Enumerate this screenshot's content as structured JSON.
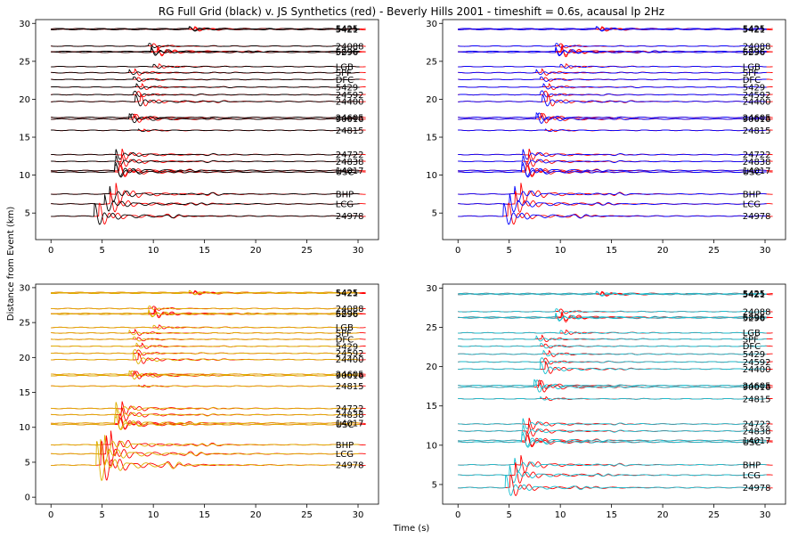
{
  "figure": {
    "title": "RG Full Grid (black) v. JS Synthetics (red) - Beverly Hills 2001 - timeshift = 0.6s, acausal lp 2Hz",
    "xlabel": "Time (s)",
    "ylabel": "Distance from Event (km)"
  },
  "chart_data": [
    {
      "type": "line",
      "panel": "top-left",
      "observed_color": "#000000",
      "synthetic_color": "#ff0000",
      "xlim": [
        -1.5,
        32
      ],
      "ylim": [
        1.5,
        30.5
      ],
      "xticks": [
        0,
        5,
        10,
        15,
        20,
        25,
        30
      ],
      "yticks": [
        5,
        10,
        15,
        20,
        25,
        30
      ],
      "stations": [
        {
          "name": "5425",
          "distance": 29.3,
          "onset": 13.5,
          "amp": 0.25
        },
        {
          "name": "5421",
          "distance": 29.2,
          "onset": 13.5,
          "amp": 0.25
        },
        {
          "name": "24088",
          "distance": 27.0,
          "onset": 9.5,
          "amp": 0.3
        },
        {
          "name": "6896",
          "distance": 26.3,
          "onset": 9.8,
          "amp": 0.6
        },
        {
          "name": "5296",
          "distance": 26.2,
          "onset": 9.8,
          "amp": 0.4
        },
        {
          "name": "LGB",
          "distance": 24.3,
          "onset": 10.0,
          "amp": 0.3
        },
        {
          "name": "SPF",
          "distance": 23.5,
          "onset": 7.6,
          "amp": 0.35
        },
        {
          "name": "DFC",
          "distance": 22.6,
          "onset": 8.0,
          "amp": 0.3
        },
        {
          "name": "5429",
          "distance": 21.6,
          "onset": 8.3,
          "amp": 0.35
        },
        {
          "name": "24592",
          "distance": 20.6,
          "onset": 8.0,
          "amp": 0.45
        },
        {
          "name": "24400",
          "distance": 19.7,
          "onset": 8.2,
          "amp": 0.8
        },
        {
          "name": "24605",
          "distance": 17.6,
          "onset": 7.8,
          "amp": 0.4
        },
        {
          "name": "90016",
          "distance": 17.4,
          "onset": 7.6,
          "amp": 0.6
        },
        {
          "name": "24815",
          "distance": 15.9,
          "onset": 8.5,
          "amp": 0.15
        },
        {
          "name": "24722",
          "distance": 12.7,
          "onset": 6.3,
          "amp": 0.7
        },
        {
          "name": "24838",
          "distance": 11.8,
          "onset": 6.3,
          "amp": 0.7
        },
        {
          "name": "14017",
          "distance": 10.6,
          "onset": 6.2,
          "amp": 1.0
        },
        {
          "name": "USC",
          "distance": 10.4,
          "onset": 6.2,
          "amp": 0.9
        },
        {
          "name": "BHP",
          "distance": 7.5,
          "onset": 5.7,
          "amp": 1.2
        },
        {
          "name": "LCG",
          "distance": 6.2,
          "onset": 5.2,
          "amp": 1.2
        },
        {
          "name": "24978",
          "distance": 4.6,
          "onset": 4.2,
          "amp": 1.5
        }
      ]
    },
    {
      "type": "line",
      "panel": "top-right",
      "observed_color": "#0000ff",
      "synthetic_color": "#ff0000",
      "xlim": [
        -1.5,
        32
      ],
      "ylim": [
        1.5,
        30.5
      ],
      "xticks": [
        0,
        5,
        10,
        15,
        20,
        25,
        30
      ],
      "yticks": [
        5,
        10,
        15,
        20,
        25,
        30
      ],
      "stations": [
        {
          "name": "5425",
          "distance": 29.3,
          "onset": 13.5,
          "amp": 0.25
        },
        {
          "name": "5421",
          "distance": 29.2,
          "onset": 13.5,
          "amp": 0.25
        },
        {
          "name": "24088",
          "distance": 27.0,
          "onset": 9.5,
          "amp": 0.3
        },
        {
          "name": "6896",
          "distance": 26.3,
          "onset": 9.5,
          "amp": 0.7
        },
        {
          "name": "5296",
          "distance": 26.2,
          "onset": 9.5,
          "amp": 0.5
        },
        {
          "name": "LGB",
          "distance": 24.3,
          "onset": 10.0,
          "amp": 0.3
        },
        {
          "name": "SPF",
          "distance": 23.5,
          "onset": 7.6,
          "amp": 0.35
        },
        {
          "name": "DFC",
          "distance": 22.6,
          "onset": 8.0,
          "amp": 0.3
        },
        {
          "name": "5429",
          "distance": 21.6,
          "onset": 8.3,
          "amp": 0.35
        },
        {
          "name": "24592",
          "distance": 20.6,
          "onset": 8.0,
          "amp": 0.5
        },
        {
          "name": "24400",
          "distance": 19.7,
          "onset": 8.2,
          "amp": 0.8
        },
        {
          "name": "24605",
          "distance": 17.6,
          "onset": 7.8,
          "amp": 0.5
        },
        {
          "name": "90016",
          "distance": 17.4,
          "onset": 7.6,
          "amp": 0.7
        },
        {
          "name": "24815",
          "distance": 15.9,
          "onset": 8.5,
          "amp": 0.15
        },
        {
          "name": "24722",
          "distance": 12.7,
          "onset": 6.3,
          "amp": 0.7
        },
        {
          "name": "24838",
          "distance": 11.8,
          "onset": 6.3,
          "amp": 0.7
        },
        {
          "name": "14017",
          "distance": 10.6,
          "onset": 6.2,
          "amp": 1.0
        },
        {
          "name": "USC",
          "distance": 10.4,
          "onset": 6.2,
          "amp": 0.9
        },
        {
          "name": "BHP",
          "distance": 7.5,
          "onset": 5.5,
          "amp": 1.2
        },
        {
          "name": "LCG",
          "distance": 6.2,
          "onset": 5.0,
          "amp": 1.3
        },
        {
          "name": "24978",
          "distance": 4.6,
          "onset": 4.4,
          "amp": 1.5
        }
      ]
    },
    {
      "type": "line",
      "panel": "bottom-left",
      "observed_color": "#ddb000",
      "synthetic_color": "#ff0000",
      "xlim": [
        -1.5,
        32
      ],
      "ylim": [
        -1,
        30.5
      ],
      "xticks": [
        0,
        5,
        10,
        15,
        20,
        25,
        30
      ],
      "yticks": [
        0,
        5,
        10,
        15,
        20,
        25,
        30
      ],
      "stations": [
        {
          "name": "5425",
          "distance": 29.3,
          "onset": 13.5,
          "amp": 0.25
        },
        {
          "name": "5421",
          "distance": 29.2,
          "onset": 13.5,
          "amp": 0.25
        },
        {
          "name": "24088",
          "distance": 27.0,
          "onset": 9.5,
          "amp": 0.3
        },
        {
          "name": "6896",
          "distance": 26.3,
          "onset": 9.5,
          "amp": 0.6
        },
        {
          "name": "5296",
          "distance": 26.2,
          "onset": 9.5,
          "amp": 0.4
        },
        {
          "name": "LGB",
          "distance": 24.3,
          "onset": 10.0,
          "amp": 0.3
        },
        {
          "name": "SPF",
          "distance": 23.5,
          "onset": 7.6,
          "amp": 0.35
        },
        {
          "name": "DFC",
          "distance": 22.6,
          "onset": 8.0,
          "amp": 0.3
        },
        {
          "name": "5429",
          "distance": 21.6,
          "onset": 8.3,
          "amp": 0.35
        },
        {
          "name": "24592",
          "distance": 20.6,
          "onset": 8.0,
          "amp": 0.5
        },
        {
          "name": "24400",
          "distance": 19.7,
          "onset": 8.0,
          "amp": 0.8
        },
        {
          "name": "24605",
          "distance": 17.6,
          "onset": 7.8,
          "amp": 0.4
        },
        {
          "name": "90016",
          "distance": 17.4,
          "onset": 7.6,
          "amp": 0.6
        },
        {
          "name": "24815",
          "distance": 15.9,
          "onset": 8.5,
          "amp": 0.15
        },
        {
          "name": "24722",
          "distance": 12.7,
          "onset": 6.3,
          "amp": 0.9
        },
        {
          "name": "24838",
          "distance": 11.8,
          "onset": 6.3,
          "amp": 0.9
        },
        {
          "name": "14017",
          "distance": 10.6,
          "onset": 6.2,
          "amp": 1.2
        },
        {
          "name": "USC",
          "distance": 10.4,
          "onset": 6.2,
          "amp": 1.0
        },
        {
          "name": "BHP",
          "distance": 7.5,
          "onset": 5.2,
          "amp": 1.6
        },
        {
          "name": "LCG",
          "distance": 6.2,
          "onset": 4.8,
          "amp": 2.0
        },
        {
          "name": "24978",
          "distance": 4.6,
          "onset": 4.4,
          "amp": 3.0
        }
      ]
    },
    {
      "type": "line",
      "panel": "bottom-right",
      "observed_color": "#17becf",
      "synthetic_color": "#ff0000",
      "xlim": [
        -1.5,
        32
      ],
      "ylim": [
        2.5,
        30.5
      ],
      "xticks": [
        0,
        5,
        10,
        15,
        20,
        25,
        30
      ],
      "yticks": [
        5,
        10,
        15,
        20,
        25,
        30
      ],
      "stations": [
        {
          "name": "5425",
          "distance": 29.3,
          "onset": 13.5,
          "amp": 0.25
        },
        {
          "name": "5421",
          "distance": 29.2,
          "onset": 13.5,
          "amp": 0.25
        },
        {
          "name": "24088",
          "distance": 27.0,
          "onset": 9.5,
          "amp": 0.3
        },
        {
          "name": "6896",
          "distance": 26.3,
          "onset": 9.5,
          "amp": 0.6
        },
        {
          "name": "5296",
          "distance": 26.2,
          "onset": 9.5,
          "amp": 0.4
        },
        {
          "name": "LGB",
          "distance": 24.3,
          "onset": 10.0,
          "amp": 0.3
        },
        {
          "name": "SPF",
          "distance": 23.5,
          "onset": 7.6,
          "amp": 0.35
        },
        {
          "name": "DFC",
          "distance": 22.6,
          "onset": 8.0,
          "amp": 0.3
        },
        {
          "name": "5429",
          "distance": 21.6,
          "onset": 8.3,
          "amp": 0.35
        },
        {
          "name": "24592",
          "distance": 20.6,
          "onset": 8.0,
          "amp": 0.5
        },
        {
          "name": "24400",
          "distance": 19.7,
          "onset": 8.0,
          "amp": 0.8
        },
        {
          "name": "24605",
          "distance": 17.6,
          "onset": 7.6,
          "amp": 0.6
        },
        {
          "name": "90016",
          "distance": 17.4,
          "onset": 7.4,
          "amp": 0.8
        },
        {
          "name": "24815",
          "distance": 15.9,
          "onset": 8.0,
          "amp": 0.2
        },
        {
          "name": "24722",
          "distance": 12.7,
          "onset": 6.3,
          "amp": 0.7
        },
        {
          "name": "24838",
          "distance": 11.8,
          "onset": 6.3,
          "amp": 0.7
        },
        {
          "name": "14017",
          "distance": 10.6,
          "onset": 6.2,
          "amp": 1.0
        },
        {
          "name": "USC",
          "distance": 10.4,
          "onset": 6.2,
          "amp": 0.9
        },
        {
          "name": "BHP",
          "distance": 7.5,
          "onset": 5.5,
          "amp": 1.0
        },
        {
          "name": "LCG",
          "distance": 6.2,
          "onset": 5.0,
          "amp": 1.2
        },
        {
          "name": "24978",
          "distance": 4.6,
          "onset": 4.6,
          "amp": 1.4
        }
      ]
    }
  ]
}
